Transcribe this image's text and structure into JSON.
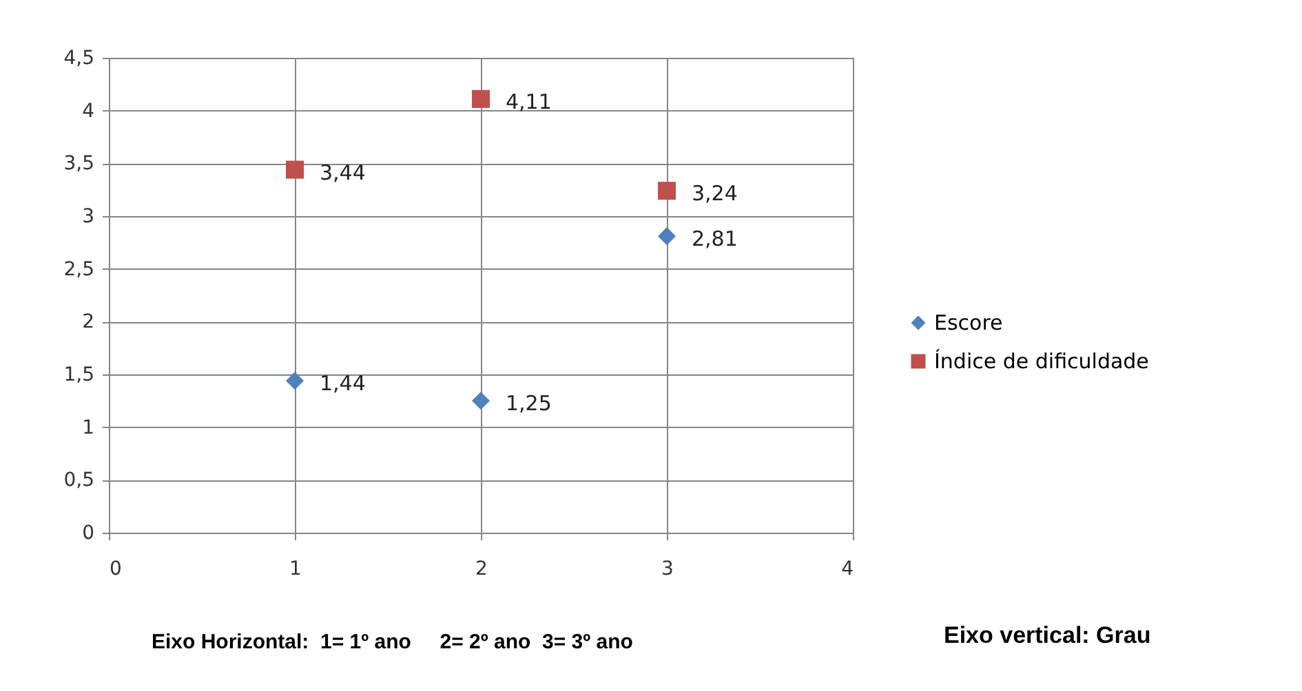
{
  "chart_data": {
    "type": "scatter",
    "x": [
      1,
      2,
      3
    ],
    "series": [
      {
        "name": "Escore",
        "color": "#4f81bd",
        "marker": "diamond",
        "values": [
          1.44,
          1.25,
          2.81
        ],
        "value_labels": [
          "1,44",
          "1,25",
          "2,81"
        ]
      },
      {
        "name": "Índice de dificuldade",
        "color": "#c0504d",
        "marker": "square",
        "values": [
          3.44,
          4.11,
          3.24
        ],
        "value_labels": [
          "3,44",
          "4,11",
          "3,24"
        ]
      }
    ],
    "xlim": [
      0,
      4
    ],
    "xticks": [
      0,
      1,
      2,
      3,
      4
    ],
    "ylim": [
      0,
      4.5
    ],
    "yticks": [
      0,
      {
        "value": 0.5,
        "label": "0,5"
      },
      1,
      {
        "value": 1.5,
        "label": "1,5"
      },
      2,
      {
        "value": 2.5,
        "label": "2,5"
      },
      3,
      {
        "value": 3.5,
        "label": "3,5"
      },
      4,
      {
        "value": 4.5,
        "label": "4,5"
      }
    ],
    "grid": true,
    "legend": "right",
    "annotations": [
      "Eixo Horizontal:  1= 1º ano     2= 2º ano  3= 3º ano",
      "Eixo vertical: Grau"
    ]
  }
}
